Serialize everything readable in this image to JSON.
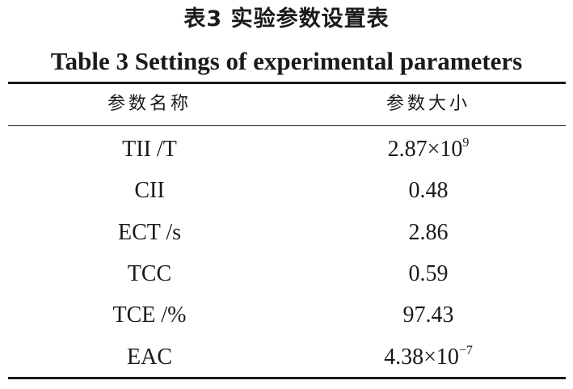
{
  "table": {
    "title_cn": "表3  实验参数设置表",
    "title_en": "Table 3  Settings of experimental parameters",
    "headers": {
      "name": "参数名称",
      "value": "参数大小"
    },
    "rows": [
      {
        "name": "TII /T",
        "value_base": "2.87×10",
        "value_exp": "9"
      },
      {
        "name": "CII",
        "value_base": "0.48",
        "value_exp": ""
      },
      {
        "name": "ECT /s",
        "value_base": "2.86",
        "value_exp": ""
      },
      {
        "name": "TCC",
        "value_base": "0.59",
        "value_exp": ""
      },
      {
        "name": "TCE /%",
        "value_base": "97.43",
        "value_exp": ""
      },
      {
        "name": "EAC",
        "value_base": "4.38×10",
        "value_exp": "−7"
      }
    ]
  }
}
